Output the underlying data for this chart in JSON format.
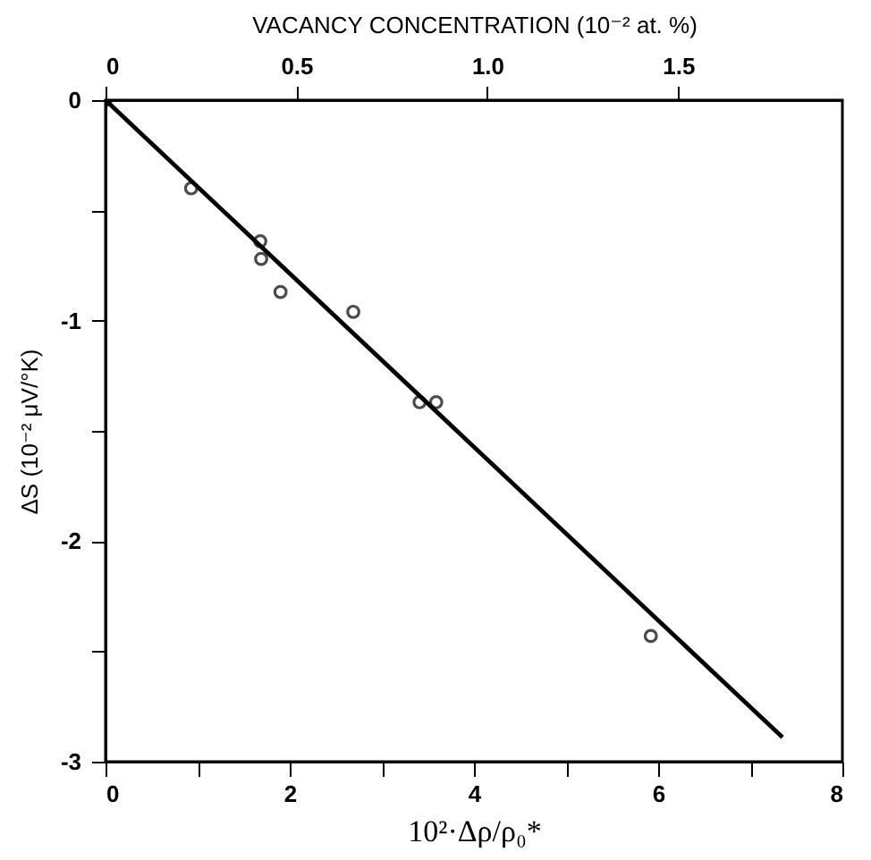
{
  "chart_data": {
    "type": "scatter",
    "xlabel": "10²·Δρ/ρ₀*",
    "ylabel": "ΔS (10⁻² μV/°K)",
    "x2label": "VACANCY CONCENTRATION (10⁻² at. %)",
    "xlim": [
      0,
      8
    ],
    "xticks": [
      0,
      {
        "value": 1,
        "label": null
      },
      2,
      {
        "value": 3,
        "label": null
      },
      4,
      {
        "value": 5,
        "label": null
      },
      6,
      {
        "value": 7,
        "label": null
      },
      8
    ],
    "ylim": [
      -3,
      0
    ],
    "yticks": [
      {
        "value": -3,
        "label": "-3"
      },
      {
        "value": -2.5,
        "label": null
      },
      {
        "value": -2,
        "label": "-2"
      },
      {
        "value": -1.5,
        "label": null
      },
      {
        "value": -1,
        "label": "-1"
      },
      {
        "value": -0.5,
        "label": null
      },
      0
    ],
    "x2lim": [
      0,
      1.93
    ],
    "x2ticks": [
      0,
      0.5,
      {
        "value": 1,
        "label": "1.0"
      },
      1.5
    ],
    "grid": false,
    "series": [
      {
        "type": "scatter",
        "marker": "circle",
        "color": "#000000",
        "x": [
          0,
          0.93,
          1.68,
          1.69,
          1.9,
          2.69,
          3.41,
          3.59,
          5.92
        ],
        "values": [
          0,
          -0.4,
          -0.64,
          -0.72,
          -0.87,
          -0.96,
          -1.37,
          -1.37,
          -2.43
        ]
      },
      {
        "type": "line",
        "color": "#000000",
        "line_style": "solid",
        "x": [
          0,
          7.35
        ],
        "values": [
          0,
          -2.89
        ]
      }
    ]
  }
}
